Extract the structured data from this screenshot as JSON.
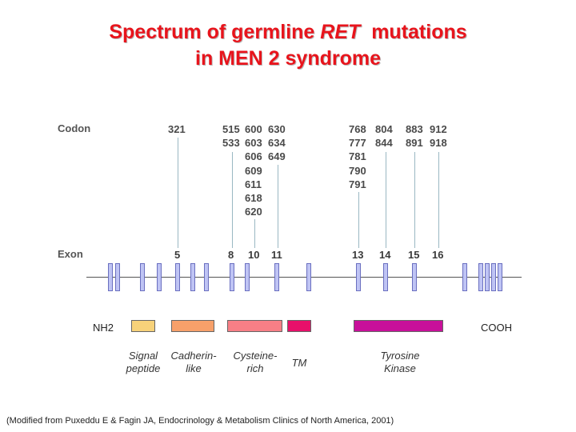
{
  "title": {
    "line1_before": "Spectrum of germline ",
    "line1_italic": "RET",
    "line1_after": "  mutations",
    "line2": "in MEN 2 syndrome"
  },
  "labels": {
    "codon": "Codon",
    "exon": "Exon"
  },
  "codon_columns": [
    {
      "lines": [
        "321"
      ]
    },
    {
      "lines": [
        "515",
        "533"
      ]
    },
    {
      "lines": [
        "600",
        "603",
        "606",
        "609",
        "611",
        "618",
        "620"
      ]
    },
    {
      "lines": [
        "630",
        "634",
        "649"
      ]
    },
    {
      "lines": [
        "768",
        "777",
        "781",
        "790",
        "791"
      ]
    },
    {
      "lines": [
        "804",
        "844"
      ]
    },
    {
      "lines": [
        "883",
        "891"
      ]
    },
    {
      "lines": [
        "912",
        "918"
      ]
    }
  ],
  "exon_numbers": [
    "5",
    "8",
    "10",
    "11",
    "13",
    "14",
    "15",
    "16"
  ],
  "termini": {
    "n": "NH2",
    "c": "COOH"
  },
  "domains": [
    {
      "label": [
        "Signal",
        "peptide"
      ],
      "color": "#f7d27a"
    },
    {
      "label": [
        "Cadherin-",
        "like"
      ],
      "color": "#f7a06a"
    },
    {
      "label": [
        "Cysteine-",
        "rich"
      ],
      "color": "#f77f86"
    },
    {
      "label": [
        "TM"
      ],
      "color": "#e8106a"
    },
    {
      "label": [
        "Tyrosine",
        "Kinase"
      ],
      "color": "#c8109a"
    }
  ],
  "citation": "(Modified from Puxeddu E & Fagin JA, Endocrinology & Metabolism Clinics of North America, 2001)"
}
